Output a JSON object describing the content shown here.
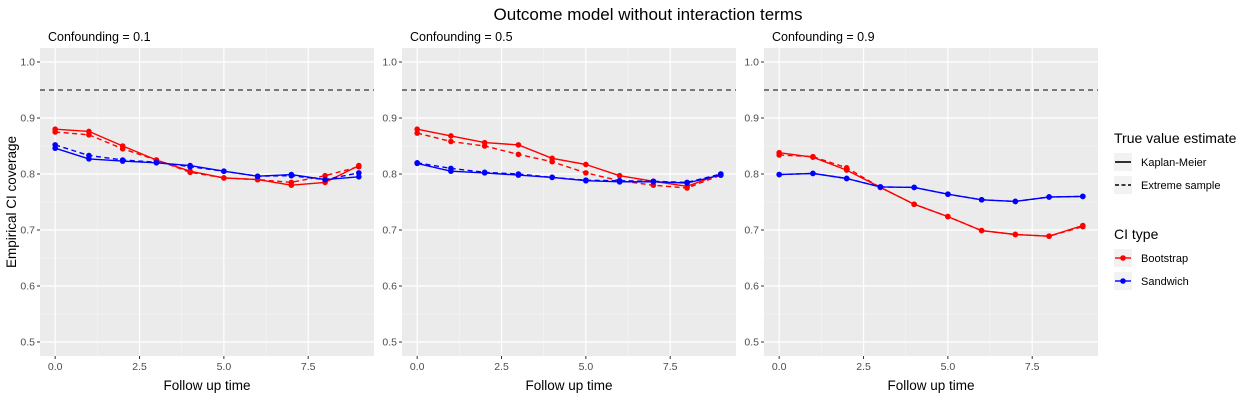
{
  "title": "Outcome model without interaction terms",
  "chart_data": {
    "type": "line",
    "xlabel": "Follow up time",
    "ylabel": "Empirical CI coverage",
    "xlim": [
      -0.45,
      9.45
    ],
    "ylim": [
      0.475,
      1.025
    ],
    "x_ticks": [
      0.0,
      2.5,
      5.0,
      7.5
    ],
    "x_tick_labels": [
      "0.0",
      "2.5",
      "5.0",
      "7.5"
    ],
    "y_ticks": [
      0.5,
      0.6,
      0.7,
      0.8,
      0.9,
      1.0
    ],
    "y_tick_labels": [
      "0.5",
      "0.6",
      "0.7",
      "0.8",
      "0.9",
      "1.0"
    ],
    "reference_line": {
      "y": 0.95,
      "style": "dashed"
    },
    "grid": true,
    "legend_placement": "right",
    "colors": {
      "Bootstrap": "#ff0000",
      "Sandwich": "#0000ff"
    },
    "panels": [
      {
        "label": "Confounding = 0.1",
        "series": [
          {
            "ci_type": "Bootstrap",
            "true_value": "Kaplan-Meier",
            "linetype": "solid",
            "x": [
              0,
              1,
              2,
              3,
              4,
              5,
              6,
              7,
              8,
              9
            ],
            "y": [
              0.88,
              0.876,
              0.85,
              0.825,
              0.805,
              0.793,
              0.79,
              0.78,
              0.785,
              0.815
            ]
          },
          {
            "ci_type": "Bootstrap",
            "true_value": "Extreme sample",
            "linetype": "dashed",
            "x": [
              0,
              1,
              2,
              3,
              4,
              5,
              6,
              7,
              8,
              9
            ],
            "y": [
              0.875,
              0.87,
              0.845,
              0.825,
              0.803,
              0.793,
              0.79,
              0.785,
              0.797,
              0.813
            ]
          },
          {
            "ci_type": "Sandwich",
            "true_value": "Kaplan-Meier",
            "linetype": "solid",
            "x": [
              0,
              1,
              2,
              3,
              4,
              5,
              6,
              7,
              8,
              9
            ],
            "y": [
              0.846,
              0.827,
              0.823,
              0.82,
              0.815,
              0.805,
              0.796,
              0.799,
              0.79,
              0.795
            ]
          },
          {
            "ci_type": "Sandwich",
            "true_value": "Extreme sample",
            "linetype": "dashed",
            "x": [
              0,
              1,
              2,
              3,
              4,
              5,
              6,
              7,
              8,
              9
            ],
            "y": [
              0.852,
              0.833,
              0.825,
              0.821,
              0.813,
              0.805,
              0.796,
              0.797,
              0.79,
              0.802
            ]
          }
        ]
      },
      {
        "label": "Confounding = 0.5",
        "series": [
          {
            "ci_type": "Bootstrap",
            "true_value": "Kaplan-Meier",
            "linetype": "solid",
            "x": [
              0,
              1,
              2,
              3,
              4,
              5,
              6,
              7,
              8,
              9
            ],
            "y": [
              0.88,
              0.868,
              0.856,
              0.852,
              0.828,
              0.817,
              0.797,
              0.787,
              0.778,
              0.8
            ]
          },
          {
            "ci_type": "Bootstrap",
            "true_value": "Extreme sample",
            "linetype": "dashed",
            "x": [
              0,
              1,
              2,
              3,
              4,
              5,
              6,
              7,
              8,
              9
            ],
            "y": [
              0.873,
              0.858,
              0.85,
              0.835,
              0.822,
              0.802,
              0.788,
              0.78,
              0.775,
              0.798
            ]
          },
          {
            "ci_type": "Sandwich",
            "true_value": "Kaplan-Meier",
            "linetype": "solid",
            "x": [
              0,
              1,
              2,
              3,
              4,
              5,
              6,
              7,
              8,
              9
            ],
            "y": [
              0.819,
              0.805,
              0.802,
              0.798,
              0.794,
              0.788,
              0.786,
              0.786,
              0.784,
              0.798
            ]
          },
          {
            "ci_type": "Sandwich",
            "true_value": "Extreme sample",
            "linetype": "dashed",
            "x": [
              0,
              1,
              2,
              3,
              4,
              5,
              6,
              7,
              8,
              9
            ],
            "y": [
              0.82,
              0.81,
              0.803,
              0.8,
              0.794,
              0.789,
              0.788,
              0.787,
              0.785,
              0.8
            ]
          }
        ]
      },
      {
        "label": "Confounding = 0.9",
        "series": [
          {
            "ci_type": "Bootstrap",
            "true_value": "Kaplan-Meier",
            "linetype": "solid",
            "x": [
              0,
              1,
              2,
              3,
              4,
              5,
              6,
              7,
              8,
              9
            ],
            "y": [
              0.838,
              0.83,
              0.807,
              0.776,
              0.746,
              0.724,
              0.699,
              0.692,
              0.689,
              0.708
            ]
          },
          {
            "ci_type": "Bootstrap",
            "true_value": "Extreme sample",
            "linetype": "dashed",
            "x": [
              0,
              1,
              2,
              3,
              4,
              5,
              6,
              7,
              8,
              9
            ],
            "y": [
              0.834,
              0.831,
              0.811,
              0.776,
              0.746,
              0.724,
              0.699,
              0.692,
              0.689,
              0.706
            ]
          },
          {
            "ci_type": "Sandwich",
            "true_value": "Kaplan-Meier",
            "linetype": "solid",
            "x": [
              0,
              1,
              2,
              3,
              4,
              5,
              6,
              7,
              8,
              9
            ],
            "y": [
              0.799,
              0.801,
              0.792,
              0.777,
              0.776,
              0.764,
              0.754,
              0.751,
              0.759,
              0.76
            ]
          },
          {
            "ci_type": "Sandwich",
            "true_value": "Extreme sample",
            "linetype": "dashed",
            "x": [
              0,
              1,
              2,
              3,
              4,
              5,
              6,
              7,
              8,
              9
            ],
            "y": [
              0.799,
              0.801,
              0.792,
              0.777,
              0.776,
              0.764,
              0.754,
              0.751,
              0.759,
              0.76
            ]
          }
        ]
      }
    ],
    "legends": [
      {
        "title": "True value estimate",
        "kind": "linetype",
        "items": [
          {
            "label": "Kaplan-Meier",
            "linetype": "solid"
          },
          {
            "label": "Extreme sample",
            "linetype": "dashed"
          }
        ]
      },
      {
        "title": "CI type",
        "kind": "color",
        "items": [
          {
            "label": "Bootstrap",
            "color": "#ff0000"
          },
          {
            "label": "Sandwich",
            "color": "#0000ff"
          }
        ]
      }
    ]
  }
}
